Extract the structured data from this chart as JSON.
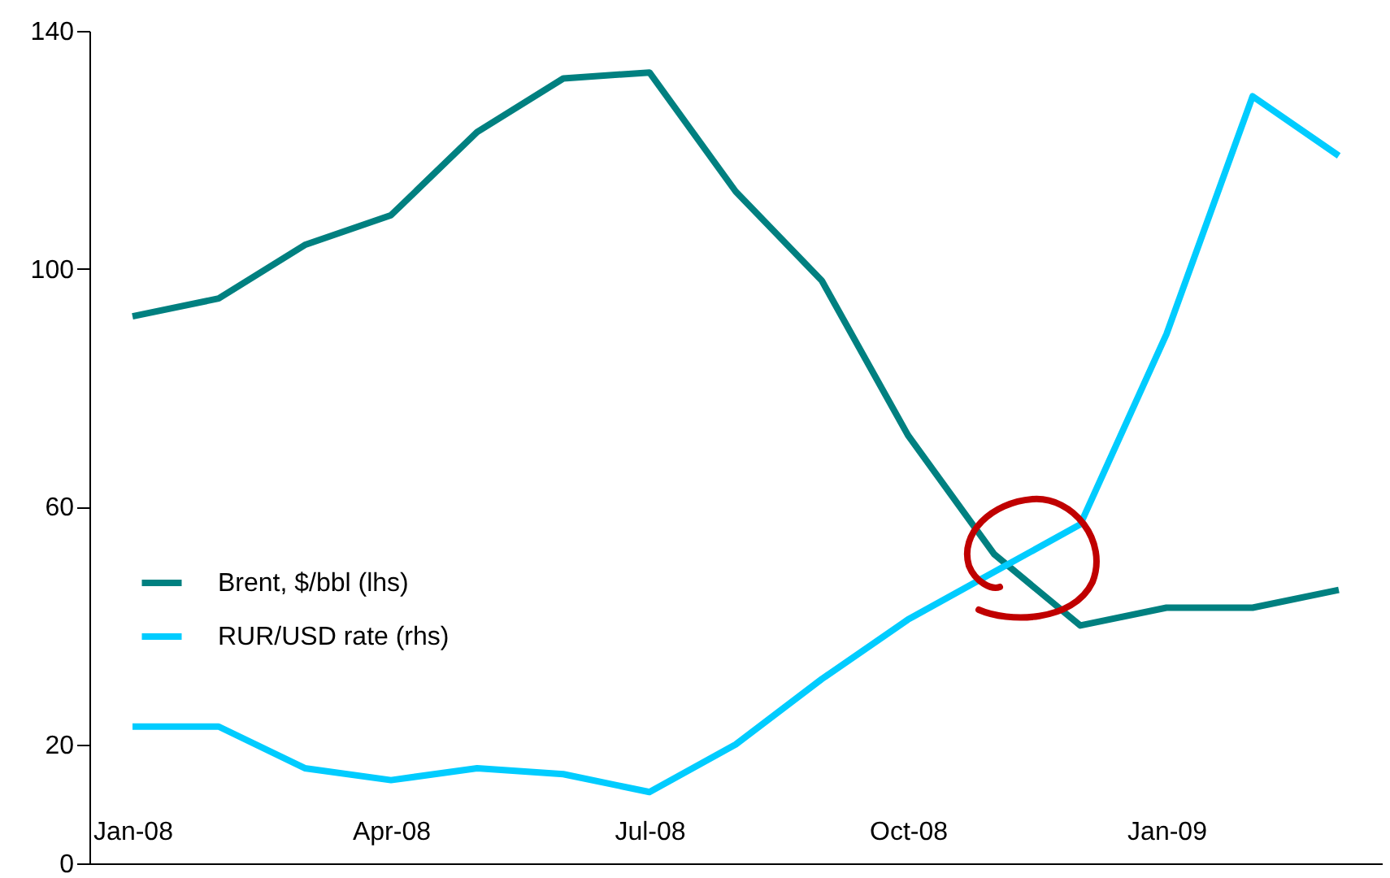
{
  "chart_data": {
    "type": "line",
    "categories": [
      "Jan-08",
      null,
      null,
      "Apr-08",
      null,
      null,
      "Jul-08",
      null,
      null,
      "Oct-08",
      null,
      null,
      "Jan-09",
      null,
      null
    ],
    "series": [
      {
        "name": "Brent, $/bbl (lhs)",
        "color": "#008080",
        "values": [
          92,
          95,
          104,
          109,
          123,
          132,
          133,
          113,
          98,
          72,
          52,
          40,
          43,
          43,
          46
        ]
      },
      {
        "name": "RUR/USD rate (rhs)",
        "color": "#00ccff",
        "values": [
          23,
          23,
          16,
          14,
          16,
          15,
          12,
          20,
          31,
          41,
          49,
          57,
          89,
          129,
          119
        ]
      }
    ],
    "ylim": [
      0,
      140
    ],
    "yticks": [
      0,
      20,
      60,
      100,
      140
    ],
    "grid": false,
    "legend": "left",
    "marker": "none",
    "line_style": "solid"
  }
}
